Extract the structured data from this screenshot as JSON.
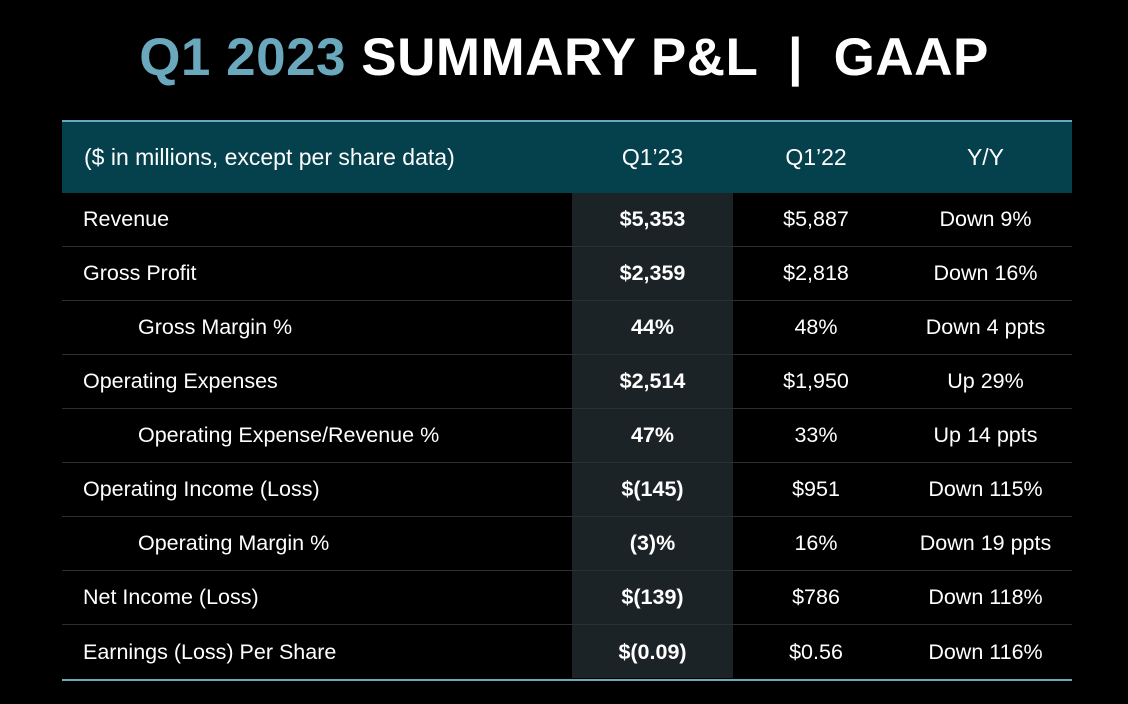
{
  "title": {
    "accent": "Q1 2023",
    "main": "SUMMARY P&L  |  GAAP"
  },
  "colors": {
    "background": "#000000",
    "title_accent": "#6aa8bd",
    "header_bg": "#05404d",
    "highlight_col": "#1c2326",
    "rule": "#6aa8bd"
  },
  "table": {
    "headers": {
      "label": "($ in millions, except per share data)",
      "q1_23": "Q1’23",
      "q1_22": "Q1’22",
      "yy": "Y/Y"
    },
    "rows": [
      {
        "label": "Revenue",
        "q1_23": "$5,353",
        "q1_22": "$5,887",
        "yy": "Down 9%"
      },
      {
        "label": "Gross Profit",
        "q1_23": "$2,359",
        "q1_22": "$2,818",
        "yy": "Down 16%"
      },
      {
        "label": "Gross Margin %",
        "q1_23": "44%",
        "q1_22": "48%",
        "yy": "Down 4 ppts"
      },
      {
        "label": "Operating Expenses",
        "q1_23": "$2,514",
        "q1_22": "$1,950",
        "yy": "Up 29%"
      },
      {
        "label": "Operating Expense/Revenue %",
        "q1_23": "47%",
        "q1_22": "33%",
        "yy": "Up 14 ppts"
      },
      {
        "label": "Operating Income (Loss)",
        "q1_23": "$(145)",
        "q1_22": "$951",
        "yy": "Down 115%"
      },
      {
        "label": "Operating Margin %",
        "q1_23": "(3)%",
        "q1_22": "16%",
        "yy": "Down 19 ppts"
      },
      {
        "label": "Net Income (Loss)",
        "q1_23": "$(139)",
        "q1_22": "$786",
        "yy": "Down 118%"
      },
      {
        "label": "Earnings (Loss) Per Share",
        "q1_23": "$(0.09)",
        "q1_22": "$0.56",
        "yy": "Down 116%"
      }
    ]
  }
}
